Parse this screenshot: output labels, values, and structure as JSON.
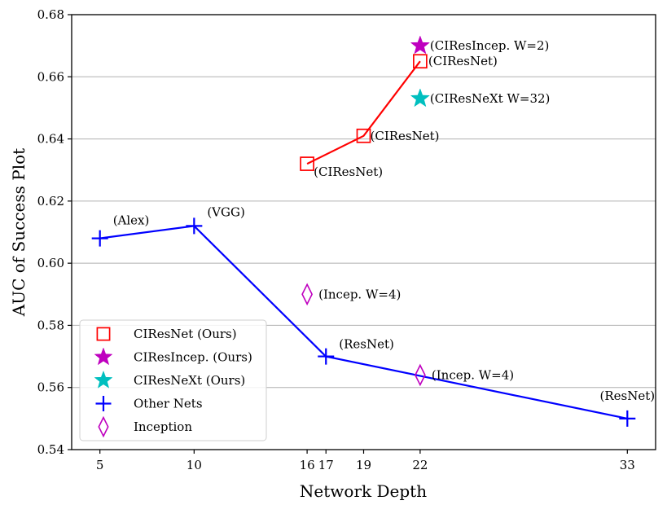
{
  "chart_data": {
    "type": "scatter",
    "xlabel": "Network Depth",
    "ylabel": "AUC of Success Plot",
    "x_ticks": [
      5,
      10,
      16,
      17,
      19,
      22,
      33
    ],
    "y_ticks": [
      "0.54",
      "0.56",
      "0.58",
      "0.60",
      "0.62",
      "0.64",
      "0.66",
      "0.68"
    ],
    "y_tick_values": [
      0.54,
      0.56,
      0.58,
      0.6,
      0.62,
      0.64,
      0.66,
      0.68
    ],
    "xlim": [
      3.5,
      34.5
    ],
    "ylim": [
      0.54,
      0.68
    ],
    "grid": "horizontal",
    "legend_placement": "lower-left",
    "series": [
      {
        "name": "CIResNet (Ours)",
        "marker": "square",
        "color": "#ff0000",
        "connected": true,
        "points": [
          {
            "x": 16,
            "y": 0.632,
            "label": "(CIResNet)"
          },
          {
            "x": 19,
            "y": 0.641,
            "label": "(CIResNet)"
          },
          {
            "x": 22,
            "y": 0.665,
            "label": "(CIResNet)"
          }
        ]
      },
      {
        "name": "CIResIncep. (Ours)",
        "marker": "star",
        "color": "#bf00bf",
        "connected": false,
        "points": [
          {
            "x": 22,
            "y": 0.67,
            "label": "(CIResIncep. W=2)"
          }
        ]
      },
      {
        "name": "CIResNeXt (Ours)",
        "marker": "star",
        "color": "#00bfbf",
        "connected": false,
        "points": [
          {
            "x": 22,
            "y": 0.653,
            "label": "(CIResNeXt W=32)"
          }
        ]
      },
      {
        "name": "Other Nets",
        "marker": "plus",
        "color": "#0000ff",
        "connected": true,
        "points": [
          {
            "x": 5,
            "y": 0.608,
            "label": "(Alex)"
          },
          {
            "x": 10,
            "y": 0.612,
            "label": "(VGG)"
          },
          {
            "x": 17,
            "y": 0.57,
            "label": "(ResNet)"
          },
          {
            "x": 33,
            "y": 0.55,
            "label": "(ResNet)"
          }
        ]
      },
      {
        "name": "Inception",
        "marker": "diamond",
        "color": "#bf00bf",
        "connected": false,
        "points": [
          {
            "x": 16,
            "y": 0.59,
            "label": "(Incep. W=4)"
          },
          {
            "x": 22,
            "y": 0.564,
            "label": "(Incep. W=4)"
          }
        ]
      }
    ]
  }
}
